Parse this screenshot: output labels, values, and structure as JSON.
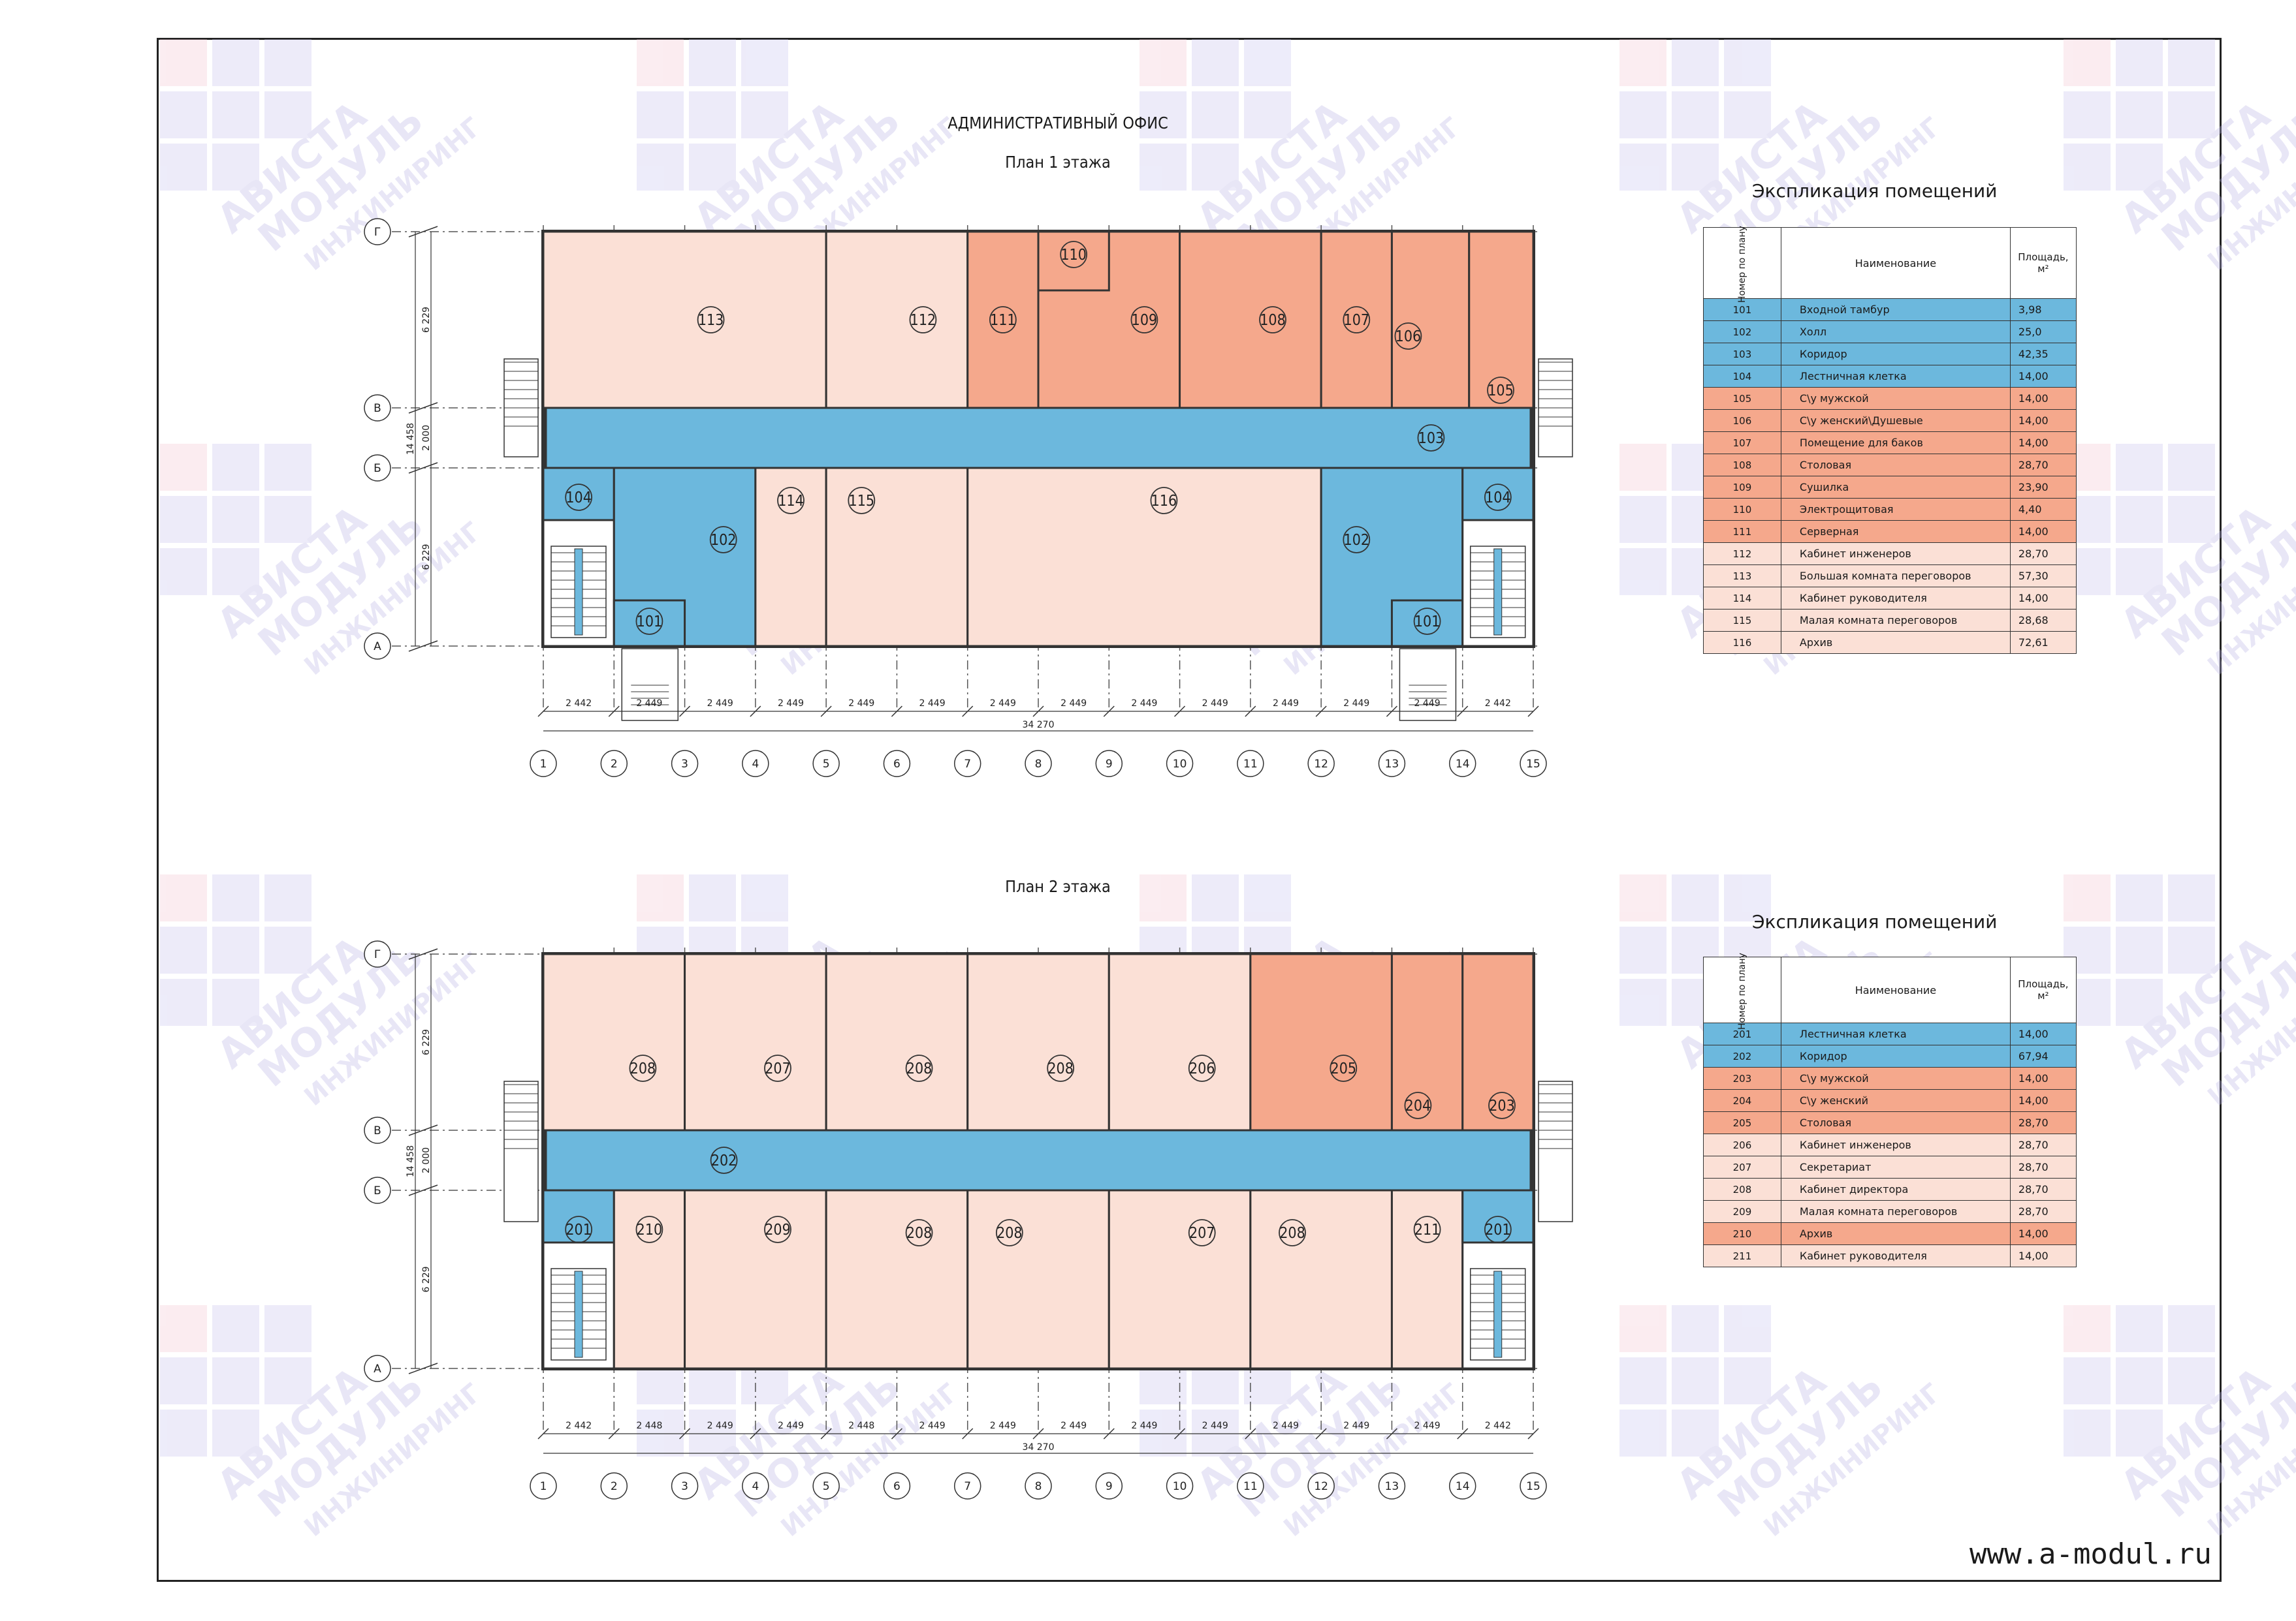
{
  "main_title": "АДМИНИСТРАТИВНЫЙ ОФИС",
  "plan1_title": "План 1 этажа",
  "plan2_title": "План 2 этажа",
  "watermark": "АВИСТА МОДУЛЬ ИНЖИНИРИНГ",
  "website": "www.a-modul.ru",
  "colors": {
    "corridor": "#6cb8dd",
    "service": "#f5a88c",
    "office": "#fbe0d6"
  },
  "explication_title": "Экспликация помещений",
  "table_headers": {
    "number": "Номер по плану",
    "name": "Наименование",
    "area": "Площадь, м²"
  },
  "grid_axes_letters": [
    "Г",
    "В",
    "Б",
    "А"
  ],
  "grid_axes_numbers": [
    "1",
    "2",
    "3",
    "4",
    "5",
    "6",
    "7",
    "8",
    "9",
    "10",
    "11",
    "12",
    "13",
    "14",
    "15"
  ],
  "dims": {
    "bays_floor1": [
      "2 442",
      "2 449",
      "2 449",
      "2 449",
      "2 449",
      "2 449",
      "2 449",
      "2 449",
      "2 449",
      "2 449",
      "2 449",
      "2 449",
      "2 449",
      "2 442"
    ],
    "bays_floor2": [
      "2 442",
      "2 448",
      "2 449",
      "2 449",
      "2 448",
      "2 449",
      "2 449",
      "2 449",
      "2 449",
      "2 449",
      "2 449",
      "2 449",
      "2 449",
      "2 442"
    ],
    "total_length": "34 270",
    "vertical": [
      "6 229",
      "2 000",
      "6 229"
    ],
    "total_width": "14 458"
  },
  "floor1_rooms": [
    {
      "num": "101",
      "name": "Входной тамбур",
      "area": "3,98",
      "color": "blue"
    },
    {
      "num": "102",
      "name": "Холл",
      "area": "25,0",
      "color": "blue"
    },
    {
      "num": "103",
      "name": "Коридор",
      "area": "42,35",
      "color": "blue"
    },
    {
      "num": "104",
      "name": "Лестничная клетка",
      "area": "14,00",
      "color": "blue"
    },
    {
      "num": "105",
      "name": "С\\у мужской",
      "area": "14,00",
      "color": "orange"
    },
    {
      "num": "106",
      "name": "С\\у женский\\Душевые",
      "area": "14,00",
      "color": "orange"
    },
    {
      "num": "107",
      "name": "Помещение для баков",
      "area": "14,00",
      "color": "orange"
    },
    {
      "num": "108",
      "name": "Столовая",
      "area": "28,70",
      "color": "orange"
    },
    {
      "num": "109",
      "name": "Сушилка",
      "area": "23,90",
      "color": "orange"
    },
    {
      "num": "110",
      "name": "Электрощитовая",
      "area": "4,40",
      "color": "orange"
    },
    {
      "num": "111",
      "name": "Серверная",
      "area": "14,00",
      "color": "orange"
    },
    {
      "num": "112",
      "name": "Кабинет инженеров",
      "area": "28,70",
      "color": "pink"
    },
    {
      "num": "113",
      "name": "Большая комната переговоров",
      "area": "57,30",
      "color": "pink"
    },
    {
      "num": "114",
      "name": "Кабинет руководителя",
      "area": "14,00",
      "color": "pink"
    },
    {
      "num": "115",
      "name": "Малая комната переговоров",
      "area": "28,68",
      "color": "pink"
    },
    {
      "num": "116",
      "name": "Архив",
      "area": "72,61",
      "color": "pink"
    }
  ],
  "floor2_rooms": [
    {
      "num": "201",
      "name": "Лестничная клетка",
      "area": "14,00",
      "color": "blue"
    },
    {
      "num": "202",
      "name": "Коридор",
      "area": "67,94",
      "color": "blue"
    },
    {
      "num": "203",
      "name": "С\\у мужской",
      "area": "14,00",
      "color": "orange"
    },
    {
      "num": "204",
      "name": "С\\у женский",
      "area": "14,00",
      "color": "orange"
    },
    {
      "num": "205",
      "name": "Столовая",
      "area": "28,70",
      "color": "orange"
    },
    {
      "num": "206",
      "name": "Кабинет инженеров",
      "area": "28,70",
      "color": "pink"
    },
    {
      "num": "207",
      "name": "Секретариат",
      "area": "28,70",
      "color": "pink"
    },
    {
      "num": "208",
      "name": "Кабинет директора",
      "area": "28,70",
      "color": "pink"
    },
    {
      "num": "209",
      "name": "Малая комната переговоров",
      "area": "28,70",
      "color": "pink"
    },
    {
      "num": "210",
      "name": "Архив",
      "area": "14,00",
      "color": "orange"
    },
    {
      "num": "211",
      "name": "Кабинет руководителя",
      "area": "14,00",
      "color": "pink"
    }
  ],
  "plan1_labels": {
    "r101a": "101",
    "r101b": "101",
    "r102a": "102",
    "r102b": "102",
    "r103": "103",
    "r104a": "104",
    "r104b": "104",
    "r105": "105",
    "r106": "106",
    "r107": "107",
    "r108": "108",
    "r109": "109",
    "r110": "110",
    "r111": "111",
    "r112": "112",
    "r113": "113",
    "r114": "114",
    "r115": "115",
    "r116": "116"
  },
  "plan2_labels": {
    "r201a": "201",
    "r201b": "201",
    "r202": "202",
    "r203": "203",
    "r204": "204",
    "r205": "205",
    "r206": "206",
    "r207a": "207",
    "r207b": "207",
    "r208a": "208",
    "r208b": "208",
    "r208c": "208",
    "r208d": "208",
    "r208e": "208",
    "r208f": "208",
    "r209": "209",
    "r210": "210",
    "r211": "211"
  }
}
